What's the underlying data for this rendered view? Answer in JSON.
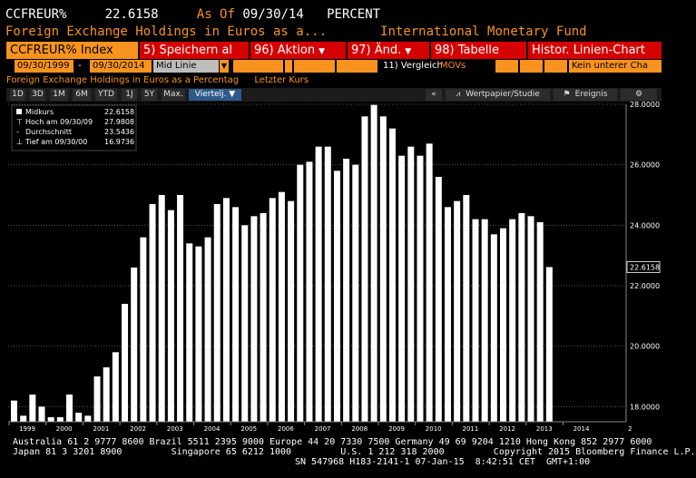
{
  "header": {
    "ticker": "CCFREUR%",
    "value": "22.6158",
    "asof_label": "As Of",
    "asof_date": "09/30/14",
    "unit": "PERCENT",
    "description": "Foreign Exchange Holdings in Euros as a...",
    "source": "International Monetary Fund"
  },
  "commands": {
    "index": "CCFREUR% Index",
    "save": "5) Speichern al",
    "action": "96) Aktion",
    "change": "97) Änd.",
    "table": "98) Tabelle",
    "historical": "Histor. Linien-Chart"
  },
  "date_row": {
    "start": "09/30/1999",
    "dash": "-",
    "end": "09/30/2014",
    "mode": "Mid Linie",
    "compare_label": "11) Vergleich",
    "compare_value": "MOVs",
    "lower_chart": "Kein unterer Cha"
  },
  "info_row": {
    "title": "Foreign Exchange Holdings in Euros as a Percentag",
    "last_price": "Letzter Kurs"
  },
  "periods": [
    "1D",
    "3D",
    "1M",
    "6M",
    "YTD",
    "1J",
    "5Y",
    "Max."
  ],
  "period_selected": "Viertelj. ▼",
  "right_buttons": {
    "collapse": "«",
    "security": "Wertpapier/Studie",
    "events": "Ereignis",
    "settings": "⚙"
  },
  "legend": {
    "series_name": "Midkurs",
    "series_value": "22.6158",
    "high_label": "Hoch am 09/30/09",
    "high_value": "27.9808",
    "avg_label": "Durchschnitt",
    "avg_value": "23.5436",
    "low_label": "Tief am 09/30/00",
    "low_value": "16.9736"
  },
  "chart_data": {
    "type": "bar",
    "ylim": [
      17.5,
      28.0
    ],
    "yticks": [
      "28.0000",
      "26.0000",
      "24.0000",
      "22.0000",
      "20.0000",
      "18.0000"
    ],
    "ytick_values": [
      28,
      26,
      24,
      22,
      20,
      18
    ],
    "last_value_label": "22.6158",
    "xlabels": [
      "1999",
      "2000",
      "2001",
      "2002",
      "2003",
      "2004",
      "2005",
      "2006",
      "2007",
      "2008",
      "2009",
      "2010",
      "2011",
      "2012",
      "2013",
      "2014"
    ],
    "right_tick": "2",
    "colors": {
      "bar": "#ffffff",
      "grid": "#5a5a5a",
      "background": "#000000",
      "axis_text": "#ffffff"
    },
    "values": [
      18.2,
      17.7,
      18.4,
      18.0,
      17.65,
      17.65,
      18.4,
      17.8,
      17.7,
      19.0,
      19.3,
      19.8,
      21.4,
      22.6,
      23.6,
      24.7,
      25.0,
      24.5,
      25.0,
      23.4,
      23.3,
      23.6,
      24.7,
      24.9,
      24.6,
      24.0,
      24.3,
      24.4,
      24.9,
      25.1,
      24.8,
      26.0,
      26.1,
      26.6,
      26.6,
      25.8,
      26.2,
      26.0,
      27.6,
      27.98,
      27.6,
      27.2,
      26.3,
      26.6,
      26.3,
      26.7,
      25.6,
      24.6,
      24.8,
      25.0,
      24.2,
      24.2,
      23.7,
      23.9,
      24.2,
      24.4,
      24.3,
      24.1,
      22.6158
    ]
  },
  "footer": {
    "line1": "Australia 61 2 9777 8600 Brazil 5511 2395 9000 Europe 44 20 7330 7500 Germany 49 69 9204 1210 Hong Kong 852 2977 6000",
    "line2": "Japan 81 3 3201 8900         Singapore 65 6212 1000         U.S. 1 212 318 2000         Copyright 2015 Bloomberg Finance L.P.",
    "line3": "SN 547968 H183-2141-1 07-Jan-15  8:42:51 CET  GMT+1:00"
  }
}
